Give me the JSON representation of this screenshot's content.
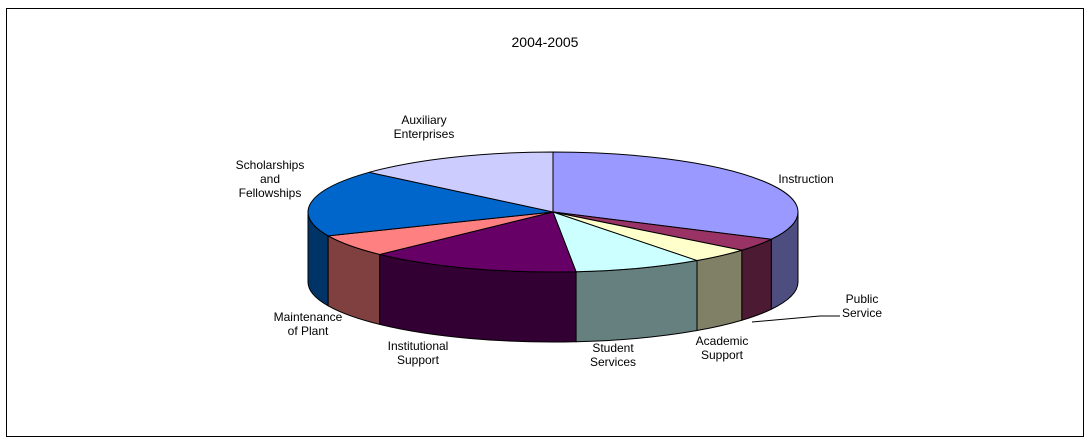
{
  "chart_data": {
    "type": "pie",
    "title": "2004-2005",
    "three_d": true,
    "slices": [
      {
        "label": "Instruction",
        "lines": [
          "Instruction"
        ],
        "value": 32.5,
        "top": "#9999ff",
        "side": "#4d4d80"
      },
      {
        "label": "Public Service",
        "lines": [
          "Public",
          "Service"
        ],
        "value": 3.5,
        "top": "#993366",
        "side": "#4d1a33"
      },
      {
        "label": "Academic Support",
        "lines": [
          "Academic",
          "Support"
        ],
        "value": 4.0,
        "top": "#ffffcc",
        "side": "#808066"
      },
      {
        "label": "Student Services",
        "lines": [
          "Student",
          "Services"
        ],
        "value": 8.5,
        "top": "#ccffff",
        "side": "#668080"
      },
      {
        "label": "Institutional Support",
        "lines": [
          "Institutional",
          "Support"
        ],
        "value": 14.0,
        "top": "#660066",
        "side": "#330033"
      },
      {
        "label": "Maintenance of Plant",
        "lines": [
          "Maintenance",
          "of Plant"
        ],
        "value": 6.0,
        "top": "#ff8080",
        "side": "#804040"
      },
      {
        "label": "Scholarships and Fellowships",
        "lines": [
          "Scholarships",
          "and",
          "Fellowships"
        ],
        "value": 18.0,
        "top": "#0066cc",
        "side": "#003366"
      },
      {
        "label": "Auxiliary Enterprises",
        "lines": [
          "Auxiliary",
          "Enterprises"
        ],
        "value": 13.5,
        "top": "#ccccff",
        "side": "#666680"
      }
    ]
  }
}
